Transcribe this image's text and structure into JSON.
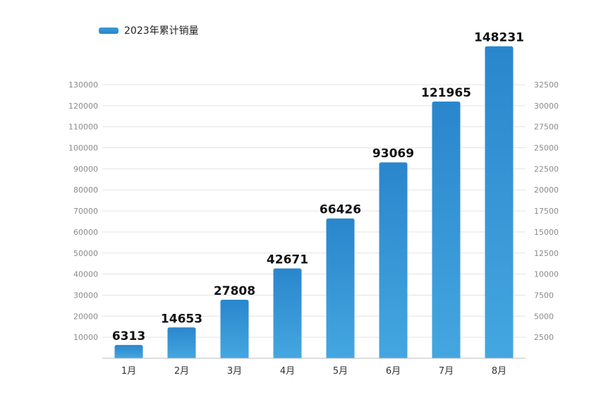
{
  "chart_data": {
    "type": "bar",
    "categories": [
      "1月",
      "2月",
      "3月",
      "4月",
      "5月",
      "6月",
      "7月",
      "8月"
    ],
    "series": [
      {
        "name": "2023年累计销量",
        "values": [
          6313,
          14653,
          27808,
          42671,
          66426,
          93069,
          121965,
          148231
        ]
      }
    ],
    "data_labels": [
      "6313",
      "14653",
      "27808",
      "42671",
      "66426",
      "93069",
      "121965",
      "148231"
    ],
    "y_left_ticks": [
      "10000",
      "20000",
      "30000",
      "40000",
      "50000",
      "60000",
      "70000",
      "80000",
      "90000",
      "100000",
      "110000",
      "120000",
      "130000"
    ],
    "y_right_ticks": [
      "2500",
      "5000",
      "7500",
      "10000",
      "12500",
      "15000",
      "17500",
      "20000",
      "22500",
      "25000",
      "27500",
      "30000",
      "32500"
    ],
    "ylim": [
      0,
      130000
    ],
    "title": "",
    "xlabel": "",
    "ylabel": "",
    "grid": true,
    "legend": "top-left",
    "colors": {
      "bar_top": "#2a86cc",
      "bar_bottom": "#44a7e0",
      "grid": "#e3e3e3"
    }
  }
}
